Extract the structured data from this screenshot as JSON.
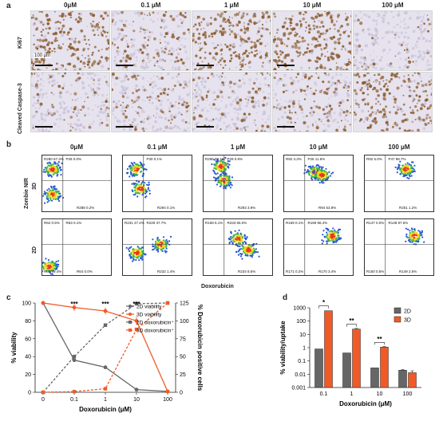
{
  "panel_letters": {
    "a": "a",
    "b": "b",
    "c": "c",
    "d": "d"
  },
  "concentrations": [
    "0μM",
    "0.1 μM",
    "1 μM",
    "10 μM",
    "100 μM"
  ],
  "panel_a": {
    "rows": [
      "Ki67",
      "Cleaved Caspase-3"
    ],
    "scale_label": "100 μm",
    "stain_color": "#8a5a2b",
    "background_color": "#c9c3d8"
  },
  "panel_b": {
    "rows": [
      "3D",
      "2D"
    ],
    "y_axis_label": "Zombie NIR",
    "x_axis_label": "Doxorubicin",
    "gate_labels": {
      "3D": [
        {
          "tl": "R280 67.3%",
          "tr": "P28 0.0%",
          "br": "R288 0.2%"
        },
        {
          "tl": "",
          "tr": "P30 0.1%",
          "br": "R294 0.1%"
        },
        {
          "tl": "R296 78.1%",
          "tr": "P29 0.8%",
          "br": "R293 3.9%"
        },
        {
          "tl": "R92 3.3%",
          "tr": "P26 11.6%",
          "br": "R94 53.8%"
        },
        {
          "tl": "R92 5.0%",
          "tr": "P47 98.7%",
          "br": "R251 1.2%"
        }
      ],
      "2D": [
        {
          "tl": "R62 0.5%",
          "tr": "R63 0.1%",
          "bl": "R65 99.4%",
          "br": "R64 0.0%"
        },
        {
          "tl": "R231 27.2%",
          "tr": "R229 37.7%",
          "bl": "",
          "br": "R232 1.4%"
        },
        {
          "tl": "R159 6.1%",
          "tr": "R233 65.0%",
          "bl": "",
          "br": "R234 8.5%"
        },
        {
          "tl": "R169 0.1%",
          "tr": "R159 96.4%",
          "bl": "R171 0.2%",
          "br": "R170 3.4%"
        },
        {
          "tl": "R147 0.0%",
          "tr": "R148 97.5%",
          "bl": "R150 0.5%",
          "br": "R149 2.5%"
        }
      ]
    }
  },
  "chart_data": [
    {
      "type": "line",
      "x": [
        "0",
        "0.1",
        "1",
        "10",
        "100"
      ],
      "xlabel": "Doxorubicin (μM)",
      "ylabel": "% viability",
      "ylabel_right": "% Doxorubicin positive cells",
      "ylim": [
        0,
        100
      ],
      "yticks": [
        0,
        20,
        40,
        60,
        80,
        100
      ],
      "ylim_right": [
        0,
        125
      ],
      "yticks_right": [
        0,
        25,
        50,
        75,
        100,
        125
      ],
      "significance": [
        {
          "x": "0.1",
          "label": "***"
        },
        {
          "x": "1",
          "label": "***"
        },
        {
          "x": "10",
          "label": "***"
        }
      ],
      "series": [
        {
          "name": "2D viability",
          "axis": "left",
          "values": [
            100,
            36,
            28,
            3,
            1
          ],
          "errors": [
            0,
            2,
            2,
            1,
            0
          ],
          "color": "#666666",
          "dashed": false
        },
        {
          "name": "3D viability",
          "axis": "left",
          "values": [
            100,
            95,
            91,
            80,
            1
          ],
          "errors": [
            0,
            4,
            4,
            5,
            0
          ],
          "color": "#f05a28",
          "dashed": false
        },
        {
          "name": "2D doxorubicin⁺",
          "axis": "right",
          "values": [
            0,
            50,
            94,
            124,
            125
          ],
          "color": "#666666",
          "dashed": true
        },
        {
          "name": "3D doxorubicin⁺",
          "axis": "right",
          "values": [
            0,
            1,
            5,
            88,
            125
          ],
          "color": "#f05a28",
          "dashed": true
        }
      ]
    },
    {
      "type": "bar",
      "categories": [
        "0.1",
        "1",
        "10",
        "100"
      ],
      "xlabel": "Doxorubicin (μM)",
      "ylabel": "% viability/uptake",
      "yscale": "log",
      "ylim": [
        0.001,
        1000
      ],
      "yticks": [
        "0.001",
        "0.01",
        "0.1",
        "1",
        "10",
        "100",
        "1000"
      ],
      "series": [
        {
          "name": "2D",
          "values": [
            0.8,
            0.4,
            0.03,
            0.02
          ],
          "errors": [
            0,
            0,
            0,
            0.002
          ],
          "color": "#666666"
        },
        {
          "name": "3D",
          "values": [
            600,
            25,
            1.1,
            0.013
          ],
          "errors": [
            0,
            3,
            0.1,
            0.005
          ],
          "color": "#f05a28"
        }
      ],
      "significance": [
        {
          "category": "0.1",
          "label": "*"
        },
        {
          "category": "1",
          "label": "**"
        },
        {
          "category": "10",
          "label": "**"
        }
      ]
    }
  ]
}
